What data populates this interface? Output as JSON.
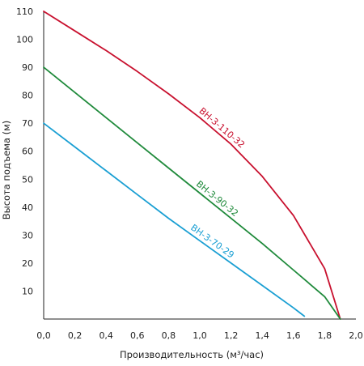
{
  "chart_data": {
    "type": "line",
    "title": "",
    "xlabel": "Производительность (м³/час)",
    "ylabel": "Высота подъема (м)",
    "xlim": [
      0.0,
      2.0
    ],
    "ylim": [
      0,
      110
    ],
    "x_ticks": [
      "0,0",
      "0,2",
      "0,4",
      "0,6",
      "0,8",
      "1,0",
      "1,2",
      "1,4",
      "1,6",
      "1,8",
      "2,0"
    ],
    "y_ticks": [
      "10",
      "20",
      "30",
      "40",
      "50",
      "60",
      "70",
      "80",
      "90",
      "100",
      "110"
    ],
    "grid": false,
    "legend": "none",
    "series": [
      {
        "name": "ВН-3-110-32",
        "color": "#c8102e",
        "points": [
          [
            0.0,
            110
          ],
          [
            0.2,
            103
          ],
          [
            0.4,
            96
          ],
          [
            0.6,
            88.5
          ],
          [
            0.8,
            80.5
          ],
          [
            1.0,
            72
          ],
          [
            1.2,
            62.5
          ],
          [
            1.4,
            51
          ],
          [
            1.6,
            37
          ],
          [
            1.8,
            18
          ],
          [
            1.9,
            0
          ]
        ]
      },
      {
        "name": "ВН-3-90-32",
        "color": "#1f8a3b",
        "points": [
          [
            0.0,
            90
          ],
          [
            0.2,
            81
          ],
          [
            0.4,
            72
          ],
          [
            0.6,
            63
          ],
          [
            0.8,
            54
          ],
          [
            1.0,
            45
          ],
          [
            1.2,
            36
          ],
          [
            1.4,
            27
          ],
          [
            1.6,
            17.5
          ],
          [
            1.8,
            8
          ],
          [
            1.9,
            0
          ]
        ]
      },
      {
        "name": "ВН-3-70-29",
        "color": "#1a9fd3",
        "points": [
          [
            0.0,
            70
          ],
          [
            0.2,
            61.5
          ],
          [
            0.4,
            53
          ],
          [
            0.6,
            44.5
          ],
          [
            0.8,
            36
          ],
          [
            1.0,
            28
          ],
          [
            1.2,
            20
          ],
          [
            1.4,
            12
          ],
          [
            1.6,
            4
          ],
          [
            1.67,
            1
          ]
        ]
      }
    ]
  }
}
